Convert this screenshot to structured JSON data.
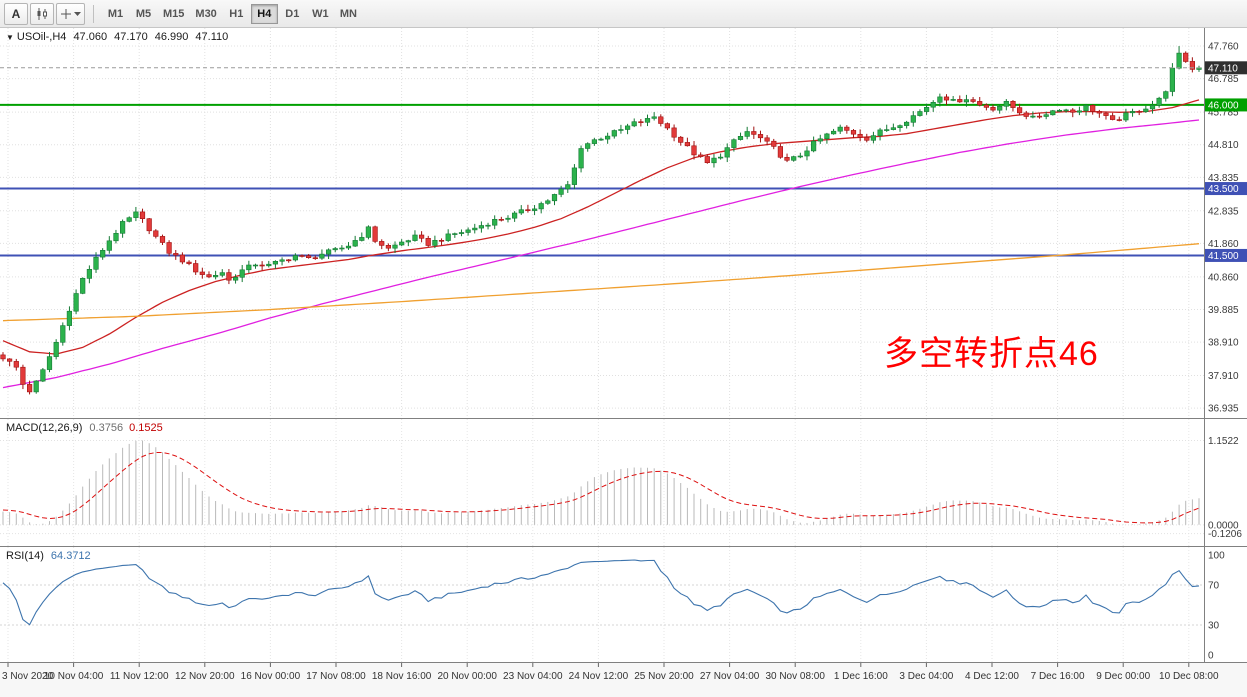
{
  "toolbar": {
    "buttons": [
      {
        "id": "auto-scroll",
        "label": "A"
      },
      {
        "id": "chart-type",
        "icon": "candlestick-chart-icon"
      },
      {
        "id": "crosshair",
        "icon": "crosshair-icon"
      }
    ],
    "timeframes": [
      "M1",
      "M5",
      "M15",
      "M30",
      "H1",
      "H4",
      "D1",
      "W1",
      "MN"
    ],
    "active_timeframe": "H4"
  },
  "main_chart": {
    "collapse_arrow": "▼",
    "symbol": "USOil-,H4",
    "ohlc": {
      "open": "47.060",
      "high": "47.170",
      "low": "46.990",
      "close": "47.110"
    },
    "annotation": {
      "text": "多空转折点46",
      "color": "#ff0000"
    },
    "price_labels": [
      "47.760",
      "46.785",
      "45.785",
      "44.810",
      "43.835",
      "42.835",
      "41.860",
      "40.860",
      "39.885",
      "38.910",
      "37.910",
      "36.935"
    ],
    "price_tags": [
      {
        "value": "47.110",
        "price": 47.11,
        "color": "#2f2f2f"
      },
      {
        "value": "46.000",
        "price": 46.0,
        "color": "#00a000"
      },
      {
        "value": "43.500",
        "price": 43.5,
        "color": "#3f51b5"
      },
      {
        "value": "41.500",
        "price": 41.5,
        "color": "#3f51b5"
      }
    ]
  },
  "macd_panel": {
    "label": "MACD(12,26,9)",
    "main_value": "0.3756",
    "signal_value": "0.1525",
    "axis_labels": [
      {
        "text": "1.1522",
        "value": 1.1522
      },
      {
        "text": "0.0000",
        "value": 0
      },
      {
        "text": "-0.1206",
        "value": -0.1206
      }
    ]
  },
  "rsi_panel": {
    "label": "RSI(14)",
    "value": "64.3712",
    "axis_labels": [
      {
        "text": "100",
        "value": 100
      },
      {
        "text": "70",
        "value": 70
      },
      {
        "text": "30",
        "value": 30
      },
      {
        "text": "0",
        "value": 0
      }
    ]
  },
  "time_axis": {
    "labels": [
      "3 Nov 2020",
      "10 Nov 04:00",
      "11 Nov 12:00",
      "12 Nov 20:00",
      "16 Nov 00:00",
      "17 Nov 08:00",
      "18 Nov 16:00",
      "20 Nov 00:00",
      "23 Nov 04:00",
      "24 Nov 12:00",
      "25 Nov 20:00",
      "27 Nov 04:00",
      "30 Nov 08:00",
      "1 Dec 16:00",
      "3 Dec 04:00",
      "4 Dec 12:00",
      "7 Dec 16:00",
      "9 Dec 00:00",
      "10 Dec 08:00"
    ]
  },
  "chart_data": {
    "type": "candlestick",
    "symbol": "USOil",
    "timeframe": "H4",
    "bars": 181,
    "price_range": [
      36.64,
      48.3
    ],
    "last_bar": {
      "open": 47.06,
      "high": 47.17,
      "low": 46.99,
      "close": 47.11
    },
    "spike_high": 47.76,
    "up_color": "#2bb24c",
    "down_color": "#e23a3a",
    "close_waypoints": [
      [
        0,
        38.45
      ],
      [
        2,
        38.15
      ],
      [
        3,
        37.65
      ],
      [
        4,
        37.45
      ],
      [
        5,
        37.7
      ],
      [
        6,
        38.05
      ],
      [
        8,
        38.9
      ],
      [
        10,
        39.9
      ],
      [
        12,
        40.8
      ],
      [
        14,
        41.4
      ],
      [
        16,
        41.95
      ],
      [
        18,
        42.45
      ],
      [
        20,
        42.75
      ],
      [
        21,
        42.55
      ],
      [
        23,
        42.05
      ],
      [
        25,
        41.6
      ],
      [
        27,
        41.35
      ],
      [
        29,
        41.05
      ],
      [
        31,
        40.85
      ],
      [
        33,
        41.0
      ],
      [
        34,
        40.75
      ],
      [
        36,
        41.05
      ],
      [
        38,
        41.25
      ],
      [
        40,
        41.2
      ],
      [
        42,
        41.35
      ],
      [
        44,
        41.5
      ],
      [
        46,
        41.4
      ],
      [
        48,
        41.55
      ],
      [
        50,
        41.65
      ],
      [
        52,
        41.8
      ],
      [
        54,
        42.1
      ],
      [
        55,
        42.3
      ],
      [
        56,
        41.95
      ],
      [
        58,
        41.7
      ],
      [
        60,
        41.9
      ],
      [
        62,
        42.05
      ],
      [
        64,
        41.85
      ],
      [
        66,
        42.0
      ],
      [
        68,
        42.15
      ],
      [
        70,
        42.25
      ],
      [
        72,
        42.4
      ],
      [
        74,
        42.55
      ],
      [
        76,
        42.65
      ],
      [
        78,
        42.8
      ],
      [
        80,
        42.95
      ],
      [
        82,
        43.15
      ],
      [
        83,
        43.3
      ],
      [
        85,
        43.6
      ],
      [
        86,
        44.1
      ],
      [
        87,
        44.75
      ],
      [
        89,
        44.95
      ],
      [
        91,
        45.1
      ],
      [
        93,
        45.25
      ],
      [
        95,
        45.45
      ],
      [
        97,
        45.55
      ],
      [
        98,
        45.65
      ],
      [
        100,
        45.3
      ],
      [
        102,
        44.9
      ],
      [
        104,
        44.55
      ],
      [
        106,
        44.25
      ],
      [
        108,
        44.5
      ],
      [
        110,
        44.9
      ],
      [
        112,
        45.2
      ],
      [
        114,
        45.0
      ],
      [
        116,
        44.7
      ],
      [
        118,
        44.3
      ],
      [
        120,
        44.5
      ],
      [
        122,
        44.85
      ],
      [
        124,
        45.1
      ],
      [
        126,
        45.3
      ],
      [
        128,
        45.15
      ],
      [
        130,
        45.0
      ],
      [
        132,
        45.2
      ],
      [
        134,
        45.35
      ],
      [
        136,
        45.55
      ],
      [
        138,
        45.8
      ],
      [
        140,
        46.1
      ],
      [
        141,
        46.3
      ],
      [
        143,
        46.1
      ],
      [
        145,
        46.2
      ],
      [
        147,
        46.0
      ],
      [
        149,
        45.9
      ],
      [
        151,
        46.05
      ],
      [
        153,
        45.8
      ],
      [
        155,
        45.6
      ],
      [
        157,
        45.75
      ],
      [
        159,
        45.9
      ],
      [
        161,
        45.8
      ],
      [
        163,
        45.95
      ],
      [
        165,
        45.75
      ],
      [
        167,
        45.5
      ],
      [
        169,
        45.7
      ],
      [
        171,
        45.85
      ],
      [
        173,
        46.0
      ],
      [
        175,
        46.4
      ],
      [
        176,
        47.1
      ],
      [
        177,
        47.55
      ],
      [
        178,
        47.3
      ],
      [
        179,
        47.06
      ],
      [
        180,
        47.11
      ]
    ],
    "pre_history_waypoints": [
      [
        -60,
        37.0
      ],
      [
        -40,
        36.8
      ],
      [
        -25,
        37.5
      ],
      [
        -12,
        38.5
      ],
      [
        -6,
        38.0
      ],
      [
        0,
        38.45
      ]
    ],
    "horizontal_levels": [
      {
        "price": 46.0,
        "color": "#00a000",
        "width": 2
      },
      {
        "price": 43.5,
        "color": "#3f51b5",
        "width": 2
      },
      {
        "price": 41.5,
        "color": "#3f51b5",
        "width": 2
      }
    ],
    "moving_averages": [
      {
        "name": "fast-ma",
        "color": "#cc2222",
        "waypoints": [
          [
            0,
            38.95
          ],
          [
            4,
            38.62
          ],
          [
            8,
            38.55
          ],
          [
            12,
            38.75
          ],
          [
            16,
            39.15
          ],
          [
            20,
            39.65
          ],
          [
            24,
            40.1
          ],
          [
            28,
            40.45
          ],
          [
            32,
            40.72
          ],
          [
            36,
            40.92
          ],
          [
            40,
            41.08
          ],
          [
            44,
            41.18
          ],
          [
            48,
            41.28
          ],
          [
            52,
            41.38
          ],
          [
            56,
            41.52
          ],
          [
            60,
            41.64
          ],
          [
            64,
            41.74
          ],
          [
            68,
            41.85
          ],
          [
            72,
            41.98
          ],
          [
            76,
            42.14
          ],
          [
            80,
            42.34
          ],
          [
            84,
            42.6
          ],
          [
            88,
            42.95
          ],
          [
            92,
            43.35
          ],
          [
            96,
            43.75
          ],
          [
            100,
            44.12
          ],
          [
            104,
            44.42
          ],
          [
            108,
            44.6
          ],
          [
            112,
            44.74
          ],
          [
            116,
            44.84
          ],
          [
            120,
            44.9
          ],
          [
            124,
            44.96
          ],
          [
            128,
            45.02
          ],
          [
            132,
            45.06
          ],
          [
            136,
            45.14
          ],
          [
            140,
            45.28
          ],
          [
            144,
            45.42
          ],
          [
            148,
            45.56
          ],
          [
            152,
            45.68
          ],
          [
            156,
            45.76
          ],
          [
            160,
            45.8
          ],
          [
            164,
            45.8
          ],
          [
            168,
            45.78
          ],
          [
            172,
            45.8
          ],
          [
            176,
            45.92
          ],
          [
            180,
            46.15
          ]
        ]
      },
      {
        "name": "mid-ma",
        "color": "#e020e0",
        "waypoints": [
          [
            0,
            37.55
          ],
          [
            8,
            37.85
          ],
          [
            16,
            38.25
          ],
          [
            24,
            38.72
          ],
          [
            32,
            39.15
          ],
          [
            40,
            39.62
          ],
          [
            48,
            40.05
          ],
          [
            56,
            40.45
          ],
          [
            64,
            40.85
          ],
          [
            72,
            41.22
          ],
          [
            80,
            41.6
          ],
          [
            88,
            41.98
          ],
          [
            96,
            42.38
          ],
          [
            104,
            42.78
          ],
          [
            112,
            43.18
          ],
          [
            120,
            43.56
          ],
          [
            128,
            43.92
          ],
          [
            136,
            44.26
          ],
          [
            144,
            44.58
          ],
          [
            152,
            44.86
          ],
          [
            160,
            45.1
          ],
          [
            168,
            45.3
          ],
          [
            174,
            45.42
          ],
          [
            180,
            45.55
          ]
        ]
      },
      {
        "name": "slow-ma",
        "color": "#f0a030",
        "waypoints": [
          [
            0,
            39.55
          ],
          [
            20,
            39.68
          ],
          [
            40,
            39.88
          ],
          [
            60,
            40.12
          ],
          [
            80,
            40.38
          ],
          [
            100,
            40.64
          ],
          [
            120,
            40.92
          ],
          [
            140,
            41.22
          ],
          [
            160,
            41.52
          ],
          [
            180,
            41.85
          ]
        ]
      }
    ],
    "macd": {
      "fast": 12,
      "slow": 26,
      "signal": 9,
      "display_max": 1.1522,
      "range": [
        -0.18,
        1.35
      ]
    },
    "rsi": {
      "period": 14,
      "range": [
        0,
        100
      ],
      "levels": [
        70,
        30
      ],
      "current": 64.3712
    }
  }
}
